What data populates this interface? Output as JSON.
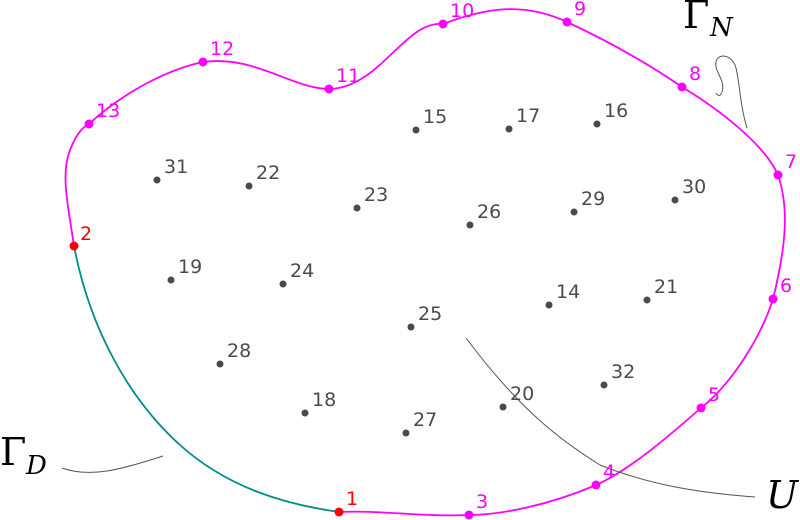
{
  "colors": {
    "neumann_boundary": "#ff00ff",
    "dirichlet_boundary": "#008b8b",
    "dirichlet_node": "#ff0000",
    "interior_node": "#4a4a4a",
    "leader_line": "#555555"
  },
  "region_labels": {
    "gamma_d": {
      "symbol": "Γ",
      "subscript": "D"
    },
    "gamma_n": {
      "symbol": "Γ",
      "subscript": "N"
    },
    "domain": "U"
  },
  "dirichlet_nodes": [
    "1",
    "2"
  ],
  "neumann_nodes": [
    "3",
    "4",
    "5",
    "6",
    "7",
    "8",
    "9",
    "10",
    "11",
    "12",
    "13"
  ],
  "interior_nodes": [
    "14",
    "15",
    "16",
    "17",
    "18",
    "19",
    "20",
    "21",
    "22",
    "23",
    "24",
    "25",
    "26",
    "27",
    "28",
    "29",
    "30",
    "31",
    "32"
  ]
}
